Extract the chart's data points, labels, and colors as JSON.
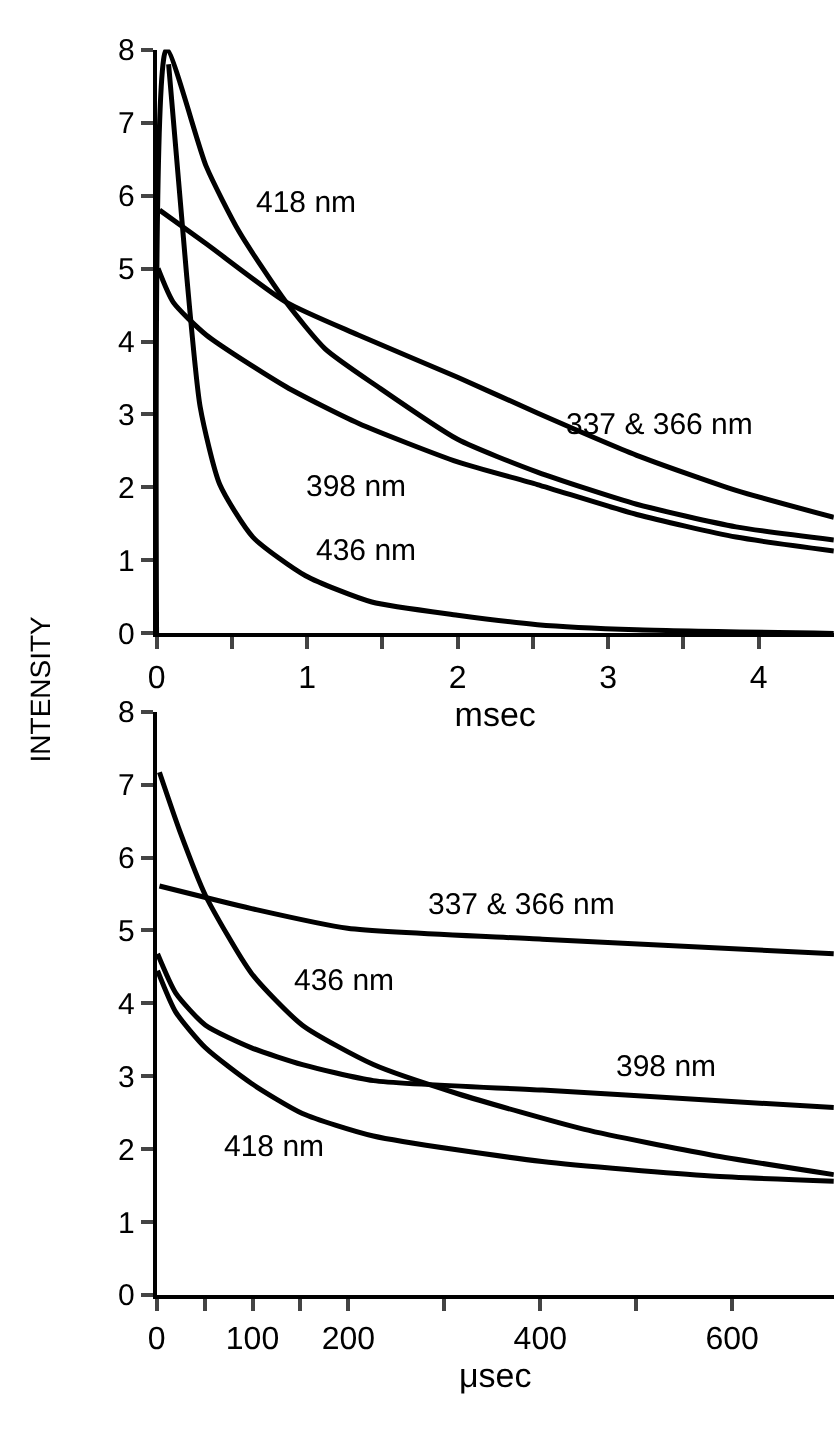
{
  "chart_data": [
    {
      "type": "line",
      "xlabel": "msec",
      "ylabel": "INTENSITY",
      "xlim": [
        0,
        4.5
      ],
      "ylim": [
        0,
        8
      ],
      "xticks": [
        0,
        {
          "value": 0.5,
          "label": null
        },
        1,
        {
          "value": 1.5,
          "label": null
        },
        2,
        {
          "value": 2.5,
          "label": null
        },
        3,
        {
          "value": 3.5,
          "label": null
        },
        4
      ],
      "yticks": [
        0,
        1,
        2,
        3,
        4,
        5,
        6,
        7,
        8
      ],
      "legend": false,
      "marker": "none",
      "line_style": "solid",
      "series": [
        {
          "name": "418 nm",
          "color": "#000000",
          "x": [
            0,
            0.066,
            0.33,
            0.55,
            0.86,
            1.12,
            1.47,
            2,
            2.53,
            3.19,
            3.85,
            4.5
          ],
          "values": [
            0,
            8,
            6.4,
            5.5,
            4.54,
            3.9,
            3.38,
            2.66,
            2.21,
            1.77,
            1.46,
            1.28
          ]
        },
        {
          "name": "337 & 366 nm",
          "color": "#000000",
          "x": [
            0.02,
            0.33,
            0.86,
            1.34,
            2,
            2.53,
            3.19,
            3.85,
            4.5
          ],
          "values": [
            5.8,
            5.34,
            4.54,
            4.09,
            3.51,
            3.02,
            2.44,
            1.96,
            1.59
          ]
        },
        {
          "name": "398 nm",
          "color": "#000000",
          "x": [
            0.01,
            0.11,
            0.33,
            0.86,
            1.34,
            2,
            2.53,
            3.19,
            3.85,
            4.5
          ],
          "values": [
            5.0,
            4.54,
            4.09,
            3.38,
            2.88,
            2.35,
            2.04,
            1.63,
            1.32,
            1.13
          ]
        },
        {
          "name": "436 nm",
          "color": "#000000",
          "x": [
            0.08,
            0.2,
            0.29,
            0.42,
            0.64,
            0.99,
            1.43,
            2,
            2.53,
            3.19,
            4.5
          ],
          "values": [
            7.8,
            4.9,
            3.1,
            2.04,
            1.32,
            0.79,
            0.43,
            0.25,
            0.12,
            0.05,
            0.0
          ]
        }
      ]
    },
    {
      "type": "line",
      "xlabel": "μsec",
      "xlim": [
        0,
        706
      ],
      "ylim": [
        0,
        8
      ],
      "xticks": [
        0,
        {
          "value": 50,
          "label": null
        },
        100,
        {
          "value": 150,
          "label": null
        },
        200,
        {
          "value": 300,
          "label": null
        },
        400,
        {
          "value": 500,
          "label": null
        },
        600
      ],
      "yticks": [
        0,
        1,
        2,
        3,
        4,
        5,
        6,
        7,
        8
      ],
      "legend": false,
      "marker": "none",
      "line_style": "solid",
      "series": [
        {
          "name": "436 nm",
          "color": "#000000",
          "x": [
            3,
            24,
            51,
            99,
            152,
            226,
            314,
            446,
            578,
            706
          ],
          "values": [
            7.17,
            6.37,
            5.48,
            4.41,
            3.7,
            3.16,
            2.76,
            2.27,
            1.92,
            1.65
          ]
        },
        {
          "name": "337 & 366 nm",
          "color": "#000000",
          "x": [
            3,
            99,
            199,
            402,
            706
          ],
          "values": [
            5.61,
            5.3,
            5.03,
            4.88,
            4.68
          ]
        },
        {
          "name": "398 nm",
          "color": "#000000",
          "x": [
            1,
            20,
            51,
            99,
            152,
            226,
            402,
            578,
            706
          ],
          "values": [
            4.68,
            4.14,
            3.7,
            3.39,
            3.16,
            2.94,
            2.81,
            2.67,
            2.57
          ]
        },
        {
          "name": "418 nm",
          "color": "#000000",
          "x": [
            1,
            20,
            51,
            99,
            152,
            226,
            402,
            578,
            706
          ],
          "values": [
            4.45,
            3.88,
            3.39,
            2.9,
            2.49,
            2.18,
            1.83,
            1.63,
            1.56
          ]
        }
      ]
    }
  ]
}
